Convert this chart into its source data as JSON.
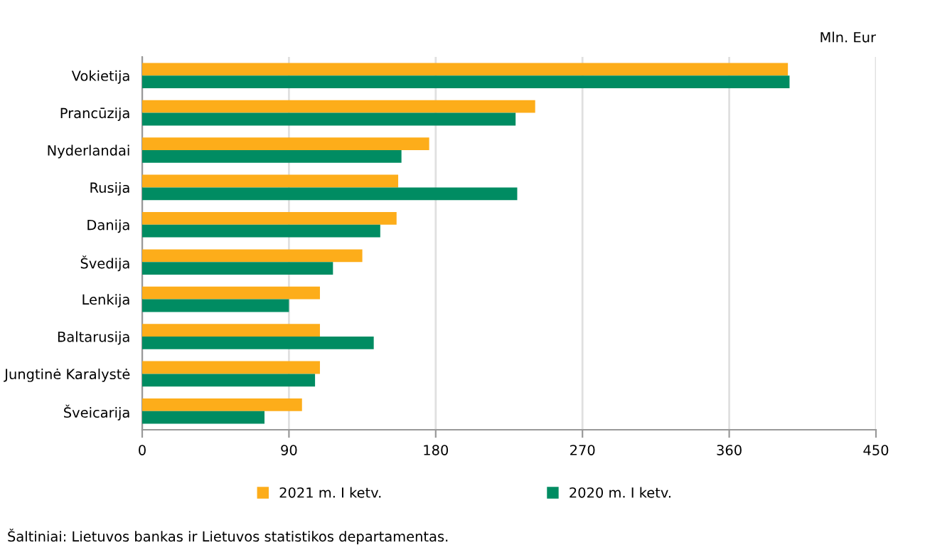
{
  "chart_data": {
    "type": "bar",
    "orientation": "horizontal",
    "categories": [
      "Vokietija",
      "Prancūzija",
      "Nyderlandai",
      "Rusija",
      "Danija",
      "Švedija",
      "Lenkija",
      "Baltarusija",
      "Jungtinė Karalystė",
      "Šveicarija"
    ],
    "series": [
      {
        "name": "2021 m. I ketv.",
        "color": "#fdad1a",
        "values": [
          396,
          241,
          176,
          157,
          156,
          135,
          109,
          109,
          109,
          98
        ]
      },
      {
        "name": "2020 m. I ketv.",
        "color": "#008c62",
        "values": [
          397,
          229,
          159,
          230,
          146,
          117,
          90,
          142,
          106,
          75
        ]
      }
    ],
    "xlabel": "Mln. Eur",
    "xlim": [
      0,
      450
    ],
    "xticks": [
      0,
      90,
      180,
      270,
      360,
      450
    ],
    "grid": "x",
    "legend": "bottom",
    "annotations": [
      "Šaltiniai: Lietuvos bankas ir Lietuvos statistikos departamentas."
    ]
  }
}
